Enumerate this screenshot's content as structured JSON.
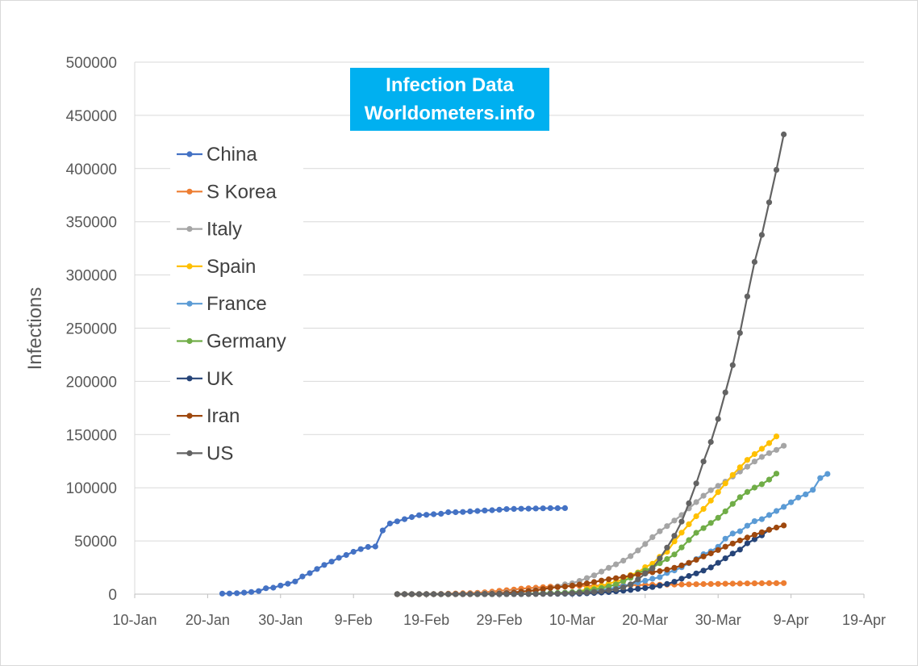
{
  "chart_data": {
    "type": "line",
    "title": "Infection Data",
    "subtitle": "Worldometers.info",
    "xlabel": "",
    "ylabel": "Infections",
    "ylim": [
      0,
      500000
    ],
    "yticks": [
      "0",
      "50000",
      "100000",
      "150000",
      "200000",
      "250000",
      "300000",
      "350000",
      "400000",
      "450000",
      "500000"
    ],
    "xticks": [
      "10-Jan",
      "20-Jan",
      "30-Jan",
      "9-Feb",
      "19-Feb",
      "29-Feb",
      "10-Mar",
      "20-Mar",
      "30-Mar",
      "9-Apr",
      "19-Apr"
    ],
    "xlim": [
      "2020-01-10",
      "2020-04-19"
    ],
    "grid": "horizontal",
    "legend_position": "left",
    "series": [
      {
        "name": "China",
        "color": "#4472c4",
        "start": "2020-01-22",
        "values": [
          548,
          643,
          920,
          1406,
          2075,
          2877,
          5509,
          6087,
          8141,
          9802,
          11891,
          16630,
          19716,
          23707,
          27440,
          30587,
          34110,
          36814,
          39829,
          42354,
          44386,
          44759,
          59895,
          66358,
          68413,
          70513,
          72434,
          74211,
          74619,
          75077,
          75550,
          77001,
          77022,
          77241,
          77754,
          78166,
          78600,
          78928,
          79356,
          79932,
          80136,
          80261,
          80386,
          80537,
          80690,
          80770,
          80823,
          80860
        ]
      },
      {
        "name": "S Korea",
        "color": "#ed7d31",
        "start": "2020-02-15",
        "values": [
          28,
          29,
          30,
          31,
          51,
          104,
          204,
          433,
          602,
          833,
          977,
          1261,
          1766,
          2337,
          3150,
          3736,
          4335,
          5186,
          5621,
          6088,
          6593,
          7041,
          7314,
          7478,
          7513,
          7755,
          7869,
          7979,
          8086,
          8162,
          8236,
          8320,
          8413,
          8565,
          8652,
          8799,
          8897,
          8961,
          9037,
          9137,
          9241,
          9332,
          9478,
          9583,
          9661,
          9786,
          9887,
          9976,
          10062,
          10156,
          10237,
          10284,
          10331,
          10384
        ]
      },
      {
        "name": "Italy",
        "color": "#a5a5a5",
        "start": "2020-02-15",
        "values": [
          3,
          3,
          3,
          3,
          3,
          3,
          20,
          62,
          155,
          229,
          322,
          453,
          655,
          888,
          1128,
          1694,
          2036,
          2502,
          3089,
          3858,
          4636,
          5883,
          7375,
          9172,
          10149,
          12462,
          15113,
          17660,
          21157,
          24747,
          27980,
          31506,
          35713,
          41035,
          47021,
          53578,
          59138,
          63927,
          69176,
          74386,
          80589,
          86498,
          92472,
          97689,
          101739,
          105792,
          110574,
          115242,
          119827,
          124632,
          128948,
          132547,
          135586,
          139422
        ]
      },
      {
        "name": "Spain",
        "color": "#ffc000",
        "start": "2020-02-15",
        "values": [
          2,
          2,
          2,
          2,
          2,
          2,
          2,
          2,
          2,
          2,
          2,
          13,
          15,
          32,
          45,
          84,
          120,
          165,
          222,
          259,
          400,
          500,
          673,
          1073,
          1695,
          2277,
          5232,
          6391,
          7798,
          9942,
          11748,
          13910,
          17963,
          20410,
          25374,
          28603,
          35136,
          39885,
          49515,
          57786,
          65719,
          73235,
          80110,
          87956,
          95923,
          104118,
          112065,
          119199,
          126168,
          131646,
          136675,
          141942,
          148220
        ]
      },
      {
        "name": "France",
        "color": "#5b9bd5",
        "start": "2020-02-15",
        "values": [
          12,
          12,
          12,
          12,
          12,
          12,
          12,
          12,
          12,
          12,
          14,
          18,
          38,
          57,
          100,
          130,
          191,
          204,
          285,
          377,
          653,
          949,
          1126,
          1412,
          1784,
          2281,
          2876,
          3661,
          4469,
          4499,
          6633,
          7730,
          9134,
          10995,
          12612,
          14459,
          16018,
          19856,
          22304,
          25233,
          29155,
          32964,
          37575,
          40174,
          44550,
          52128,
          56989,
          59105,
          64338,
          68605,
          70478,
          74390,
          78167,
          82048,
          86334,
          90848,
          93790,
          98010,
          109069,
          112950
        ]
      },
      {
        "name": "Germany",
        "color": "#70ad47",
        "start": "2020-02-15",
        "values": [
          16,
          16,
          16,
          16,
          16,
          16,
          16,
          16,
          16,
          16,
          18,
          26,
          48,
          79,
          130,
          159,
          196,
          262,
          482,
          670,
          799,
          1040,
          1176,
          1457,
          1908,
          2078,
          3675,
          4585,
          5795,
          7272,
          9257,
          12327,
          15320,
          19848,
          22213,
          24873,
          29056,
          32986,
          37323,
          43938,
          50871,
          57695,
          62095,
          66885,
          71808,
          77872,
          84794,
          91159,
          96092,
          100123,
          103374,
          107663,
          113296
        ]
      },
      {
        "name": "UK",
        "color": "#264478",
        "start": "2020-02-15",
        "values": [
          9,
          9,
          9,
          9,
          9,
          9,
          9,
          9,
          13,
          13,
          13,
          15,
          20,
          23,
          36,
          40,
          51,
          85,
          115,
          163,
          206,
          273,
          321,
          382,
          456,
          456,
          798,
          1140,
          1543,
          1950,
          2626,
          3269,
          3983,
          5018,
          5683,
          6650,
          8077,
          9529,
          11658,
          14543,
          17089,
          19522,
          22141,
          25150,
          29474,
          33718,
          38168,
          41903,
          47806,
          51608,
          55242,
          60733
        ]
      },
      {
        "name": "Iran",
        "color": "#9e480e",
        "start": "2020-02-15",
        "values": [
          0,
          0,
          0,
          0,
          2,
          5,
          18,
          28,
          43,
          61,
          95,
          139,
          245,
          388,
          593,
          978,
          1501,
          2336,
          2922,
          3513,
          4747,
          5823,
          6566,
          7161,
          8042,
          9000,
          10075,
          11364,
          12729,
          13938,
          14991,
          16169,
          17361,
          18407,
          19644,
          20610,
          21638,
          23049,
          24811,
          27017,
          29406,
          32332,
          35408,
          38309,
          41495,
          44605,
          47593,
          50468,
          53183,
          55743,
          58226,
          60500,
          62589,
          64586
        ]
      },
      {
        "name": "US",
        "color": "#636363",
        "start": "2020-02-15",
        "values": [
          15,
          15,
          15,
          15,
          15,
          15,
          35,
          35,
          35,
          53,
          57,
          60,
          60,
          62,
          68,
          75,
          100,
          124,
          158,
          221,
          319,
          435,
          541,
          704,
          994,
          1301,
          1630,
          2183,
          2770,
          3613,
          4596,
          6344,
          9197,
          13779,
          19367,
          24192,
          33592,
          43781,
          54856,
          68211,
          85435,
          104126,
          124665,
          143025,
          164620,
          189618,
          215215,
          245559,
          279822,
          312237,
          337635,
          368196,
          398809,
          432132
        ]
      }
    ]
  }
}
